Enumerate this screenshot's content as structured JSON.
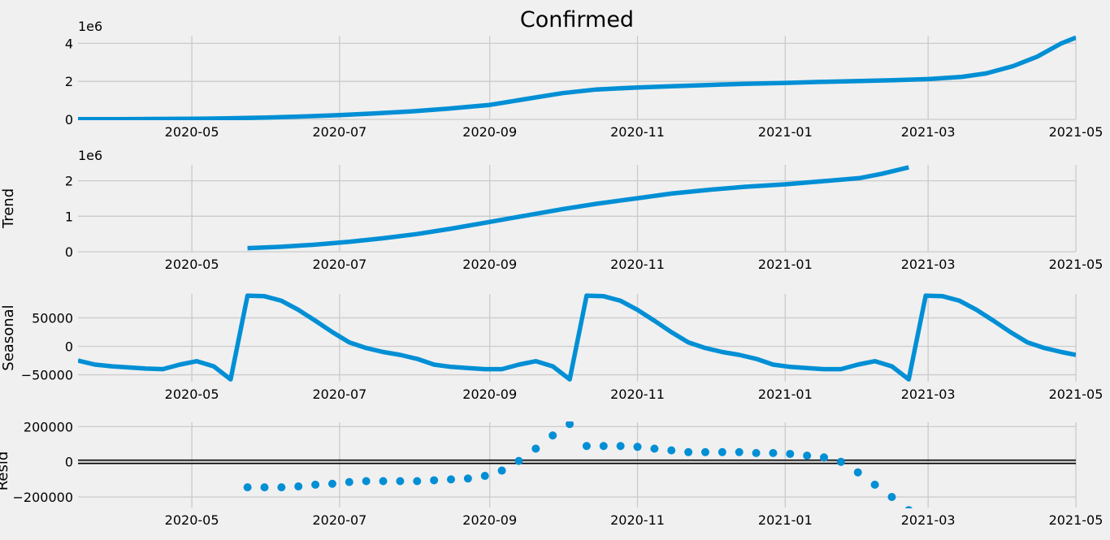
{
  "chart_data": [
    {
      "type": "line",
      "title": "Confirmed",
      "ylabel": "",
      "offset_label": "1e6",
      "ylim": [
        0,
        4.4
      ],
      "yticks": [
        0,
        2,
        4
      ],
      "ytick_labels": [
        "0",
        "2",
        "4"
      ],
      "grid": true,
      "series": [
        {
          "x": [
            "2020-03-15",
            "2020-04-01",
            "2020-04-15",
            "2020-05-01",
            "2020-05-15",
            "2020-06-01",
            "2020-06-15",
            "2020-07-01",
            "2020-07-15",
            "2020-08-01",
            "2020-08-15",
            "2020-09-01",
            "2020-09-15",
            "2020-10-01",
            "2020-10-15",
            "2020-11-01",
            "2020-11-15",
            "2020-12-01",
            "2020-12-15",
            "2021-01-01",
            "2021-01-15",
            "2021-02-01",
            "2021-02-15",
            "2021-03-01",
            "2021-03-15",
            "2021-03-25",
            "2021-04-05",
            "2021-04-15",
            "2021-04-25",
            "2021-05-01"
          ],
          "values": [
            0.01,
            0.01,
            0.02,
            0.03,
            0.05,
            0.1,
            0.15,
            0.22,
            0.31,
            0.43,
            0.57,
            0.76,
            1.05,
            1.38,
            1.57,
            1.68,
            1.74,
            1.81,
            1.87,
            1.92,
            1.97,
            2.02,
            2.06,
            2.12,
            2.24,
            2.42,
            2.8,
            3.3,
            4.0,
            4.3
          ]
        }
      ]
    },
    {
      "type": "line",
      "title": "",
      "ylabel": "Trend",
      "offset_label": "1e6",
      "ylim": [
        0,
        2.45
      ],
      "yticks": [
        0,
        1,
        2
      ],
      "ytick_labels": [
        "0",
        "1",
        "2"
      ],
      "grid": true,
      "series": [
        {
          "x": [
            "2020-05-24",
            "2020-06-07",
            "2020-06-21",
            "2020-07-05",
            "2020-07-19",
            "2020-08-02",
            "2020-08-16",
            "2020-09-01",
            "2020-09-15",
            "2020-10-01",
            "2020-10-15",
            "2020-11-01",
            "2020-11-15",
            "2020-12-01",
            "2020-12-15",
            "2021-01-01",
            "2021-01-15",
            "2021-02-01",
            "2021-02-10",
            "2021-02-21"
          ],
          "values": [
            0.1,
            0.14,
            0.2,
            0.28,
            0.38,
            0.5,
            0.65,
            0.84,
            1.01,
            1.2,
            1.35,
            1.51,
            1.64,
            1.75,
            1.83,
            1.9,
            1.98,
            2.08,
            2.2,
            2.38
          ]
        }
      ]
    },
    {
      "type": "line",
      "title": "",
      "ylabel": "Seasonal",
      "ylim": [
        -62000,
        92000
      ],
      "yticks": [
        -50000,
        0,
        50000
      ],
      "ytick_labels": [
        "−50000",
        "0",
        "50000"
      ],
      "grid": true,
      "series": [
        {
          "x": [
            "2020-03-15",
            "2020-03-22",
            "2020-03-29",
            "2020-04-05",
            "2020-04-12",
            "2020-04-19",
            "2020-04-26",
            "2020-05-03",
            "2020-05-10",
            "2020-05-17",
            "2020-05-24",
            "2020-05-31",
            "2020-06-07",
            "2020-06-14",
            "2020-06-21",
            "2020-06-28",
            "2020-07-05",
            "2020-07-12",
            "2020-07-19",
            "2020-07-26",
            "2020-08-02",
            "2020-08-09",
            "2020-08-16",
            "2020-08-23",
            "2020-08-30",
            "2020-09-06",
            "2020-09-13",
            "2020-09-20",
            "2020-09-27",
            "2020-10-04",
            "2020-10-11",
            "2020-10-18",
            "2020-10-25",
            "2020-11-01",
            "2020-11-08",
            "2020-11-15",
            "2020-11-22",
            "2020-11-29",
            "2020-12-06",
            "2020-12-13",
            "2020-12-20",
            "2020-12-27",
            "2021-01-03",
            "2021-01-10",
            "2021-01-17",
            "2021-01-24",
            "2021-01-31",
            "2021-02-07",
            "2021-02-14",
            "2021-02-21",
            "2021-02-28",
            "2021-03-07",
            "2021-03-14",
            "2021-03-21",
            "2021-03-28",
            "2021-04-04",
            "2021-04-11",
            "2021-04-18",
            "2021-04-25",
            "2021-05-01"
          ],
          "values": [
            -25000,
            -32000,
            -35000,
            -37000,
            -39000,
            -40000,
            -32000,
            -26000,
            -35000,
            -58000,
            89000,
            88000,
            80000,
            64000,
            45000,
            25000,
            7000,
            -3000,
            -10000,
            -15000,
            -22000,
            -32000,
            -36000,
            -38000,
            -40000,
            -40000,
            -32000,
            -26000,
            -35000,
            -58000,
            89000,
            88000,
            80000,
            64000,
            45000,
            25000,
            7000,
            -3000,
            -10000,
            -15000,
            -22000,
            -32000,
            -36000,
            -38000,
            -40000,
            -40000,
            -32000,
            -26000,
            -35000,
            -58000,
            89000,
            88000,
            80000,
            64000,
            45000,
            25000,
            7000,
            -3000,
            -10000,
            -15000
          ]
        }
      ]
    },
    {
      "type": "scatter",
      "title": "",
      "ylabel": "Resid",
      "ylim": [
        -260000,
        225000
      ],
      "yticks": [
        -200000,
        0,
        200000
      ],
      "ytick_labels": [
        "−200000",
        "0",
        "200000"
      ],
      "zero_line": true,
      "grid": true,
      "series": [
        {
          "x": [
            "2020-05-24",
            "2020-05-31",
            "2020-06-07",
            "2020-06-14",
            "2020-06-21",
            "2020-06-28",
            "2020-07-05",
            "2020-07-12",
            "2020-07-19",
            "2020-07-26",
            "2020-08-02",
            "2020-08-09",
            "2020-08-16",
            "2020-08-23",
            "2020-08-30",
            "2020-09-06",
            "2020-09-13",
            "2020-09-20",
            "2020-09-27",
            "2020-10-04",
            "2020-10-11",
            "2020-10-18",
            "2020-10-25",
            "2020-11-01",
            "2020-11-08",
            "2020-11-15",
            "2020-11-22",
            "2020-11-29",
            "2020-12-06",
            "2020-12-13",
            "2020-12-20",
            "2020-12-27",
            "2021-01-03",
            "2021-01-10",
            "2021-01-17",
            "2021-01-24",
            "2021-01-31",
            "2021-02-07",
            "2021-02-14",
            "2021-02-21"
          ],
          "values": [
            -145000,
            -145000,
            -145000,
            -140000,
            -130000,
            -125000,
            -115000,
            -110000,
            -110000,
            -110000,
            -110000,
            -105000,
            -100000,
            -95000,
            -80000,
            -50000,
            5000,
            75000,
            150000,
            215000,
            90000,
            90000,
            90000,
            85000,
            75000,
            65000,
            55000,
            55000,
            55000,
            55000,
            50000,
            50000,
            45000,
            35000,
            25000,
            0,
            -60000,
            -130000,
            -200000,
            -275000
          ]
        }
      ]
    }
  ],
  "x_axis": {
    "range": [
      "2020-03-15",
      "2021-05-01"
    ],
    "ticks": [
      "2020-05-01",
      "2020-07-01",
      "2020-09-01",
      "2020-11-01",
      "2021-01-01",
      "2021-03-01",
      "2021-05-01"
    ],
    "tick_labels": [
      "2020-05",
      "2020-07",
      "2020-09",
      "2020-11",
      "2021-01",
      "2021-03",
      "2021-05"
    ]
  },
  "colors": {
    "line": "#008fd5",
    "grid": "#cbcbcb",
    "background": "#f0f0f0",
    "zero_line": "#000000"
  }
}
